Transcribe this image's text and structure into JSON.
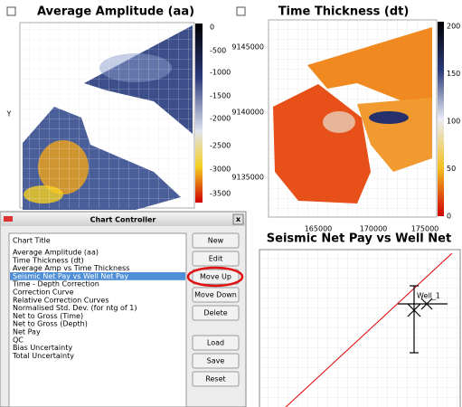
{
  "panels": [
    {
      "title": "Average Amplitude (aa)",
      "y_label": "Y",
      "colorbar_ticks": [
        "0",
        "-500",
        "-1000",
        "-1500",
        "-2000",
        "-2500",
        "-3000",
        "-3500"
      ]
    },
    {
      "title": "Time Thickness (dt)",
      "y_ticks": [
        "9145000",
        "9140000",
        "9135000"
      ],
      "x_ticks": [
        "165000",
        "170000",
        "175000"
      ],
      "colorbar_ticks": [
        "200",
        "150",
        "100",
        "50",
        "0"
      ]
    },
    {
      "title": "Seismic Net Pay vs Well Net",
      "annotation": "Well_1"
    }
  ],
  "dialog": {
    "title": "Chart Controller",
    "close": "x",
    "list_header": "Chart Title",
    "items": [
      "Average Amplitude (aa)",
      "Time Thickness (dt)",
      "Average Amp vs Time Thickness",
      "Seismic Net Pay vs Well Net Pay",
      "Time - Depth Correction",
      "Correction Curve",
      "Relative Correction Curves",
      "Normalised Std. Dev. (for ntg of 1)",
      "Net to Gross (Time)",
      "Net to Gross (Depth)",
      "Net Pay",
      "QC",
      "Bias Uncertainty",
      "Total Uncertainty"
    ],
    "selected": 3,
    "buttons": [
      "New",
      "Edit",
      "Move Up",
      "Move Down",
      "Delete",
      "Load",
      "Save",
      "Reset"
    ]
  }
}
